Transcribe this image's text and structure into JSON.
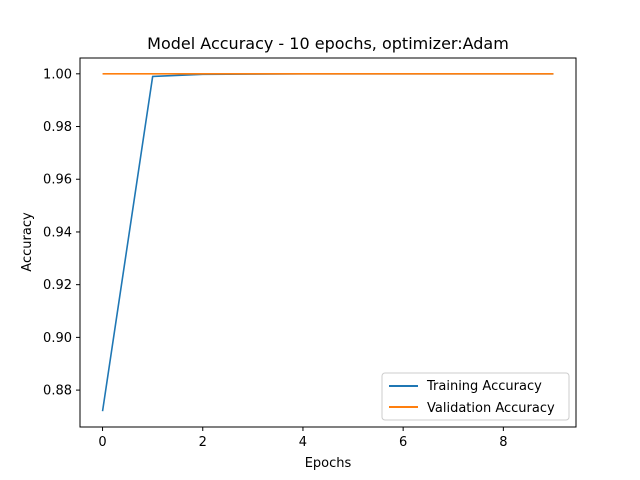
{
  "chart_data": {
    "type": "line",
    "title": "Model Accuracy - 10 epochs, optimizer:Adam",
    "xlabel": "Epochs",
    "ylabel": "Accuracy",
    "x": [
      0,
      1,
      2,
      3,
      4,
      5,
      6,
      7,
      8,
      9
    ],
    "xlim": [
      -0.45,
      9.45
    ],
    "ylim": [
      0.866,
      1.006
    ],
    "xticks": [
      0,
      2,
      4,
      6,
      8
    ],
    "xtick_labels": [
      "0",
      "2",
      "4",
      "6",
      "8"
    ],
    "yticks": [
      0.88,
      0.9,
      0.92,
      0.94,
      0.96,
      0.98,
      1.0
    ],
    "ytick_labels": [
      "0.88",
      "0.90",
      "0.92",
      "0.94",
      "0.96",
      "0.98",
      "1.00"
    ],
    "grid": false,
    "legend_position": "lower-right",
    "series": [
      {
        "name": "Training Accuracy",
        "color": "#1f77b4",
        "values": [
          0.872,
          0.999,
          0.9998,
          0.9999,
          1.0,
          1.0,
          1.0,
          1.0,
          1.0,
          1.0
        ]
      },
      {
        "name": "Validation Accuracy",
        "color": "#ff7f0e",
        "values": [
          1.0,
          1.0,
          1.0,
          1.0,
          1.0,
          1.0,
          1.0,
          1.0,
          1.0,
          1.0
        ]
      }
    ]
  }
}
